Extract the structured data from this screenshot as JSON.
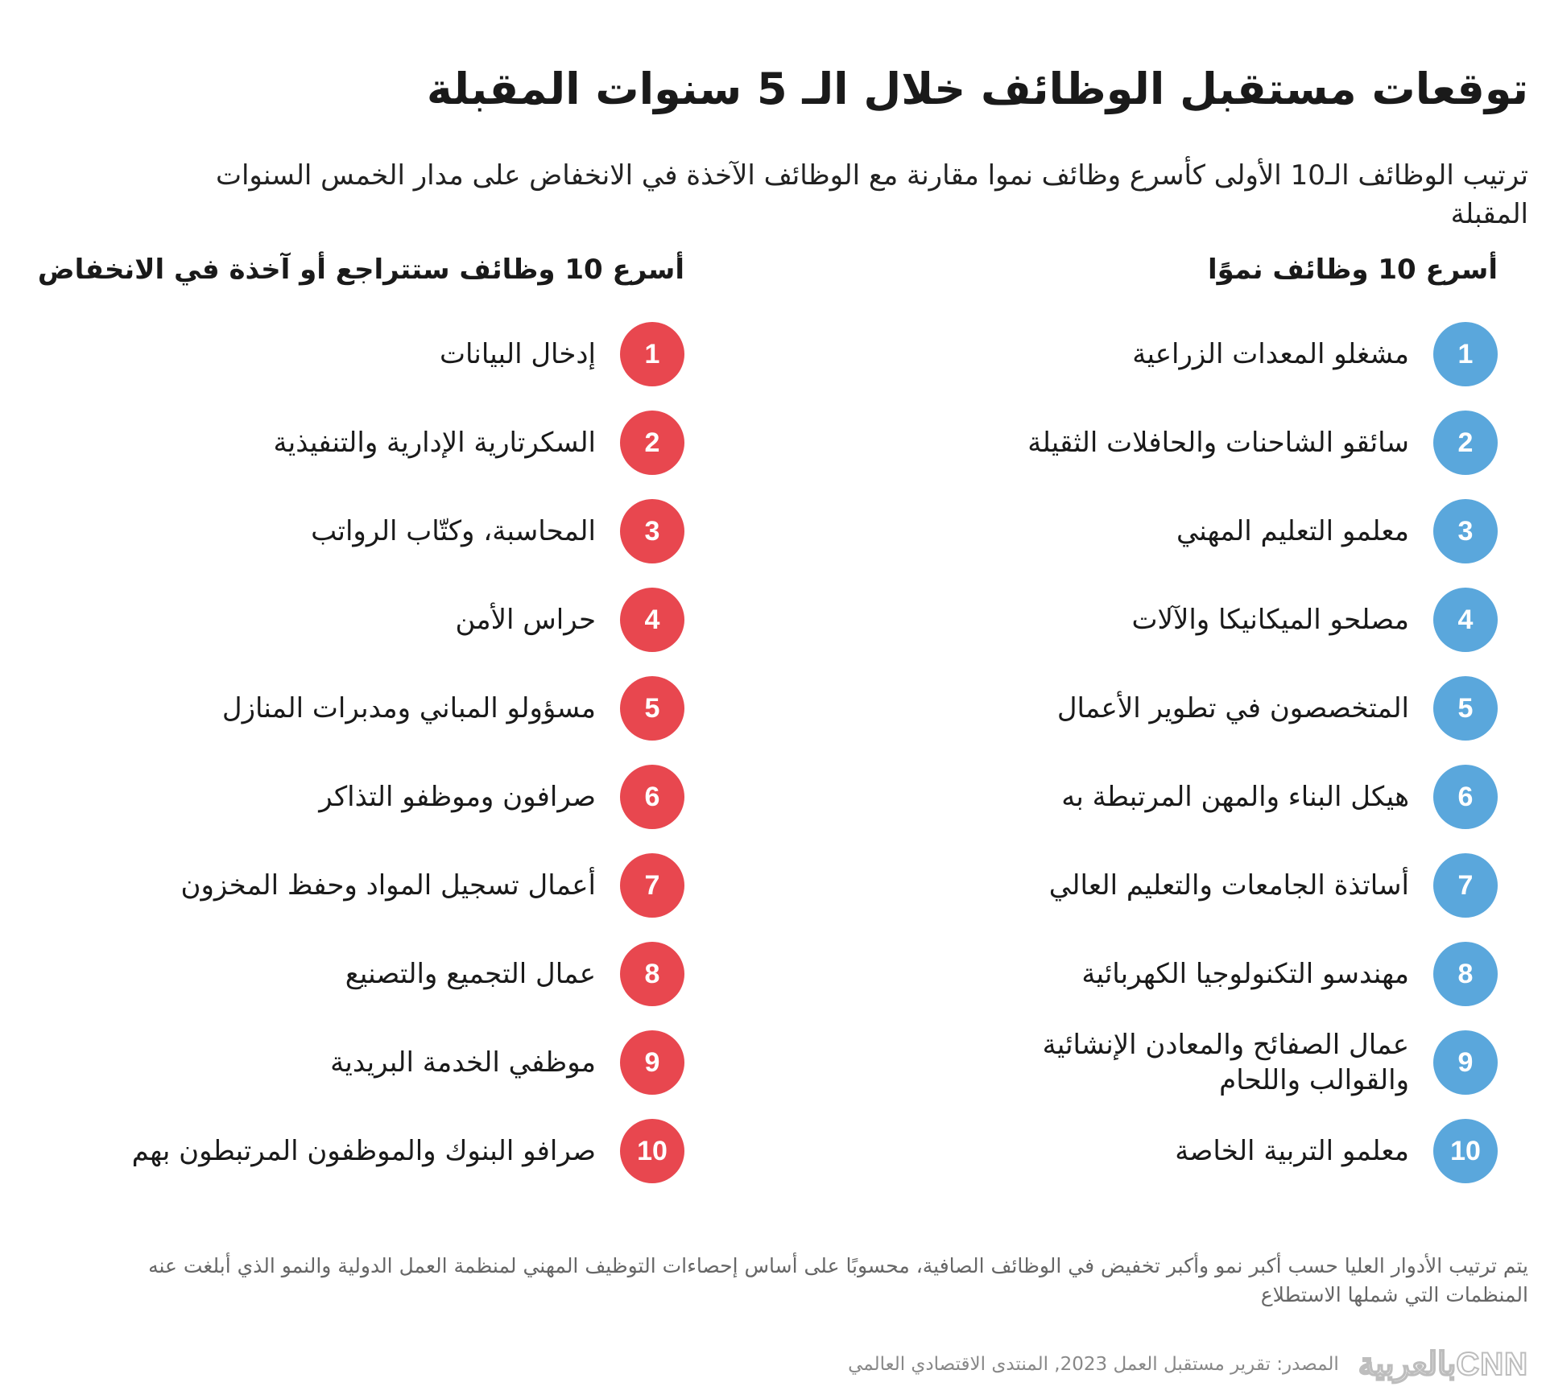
{
  "title": "توقعات مستقبل الوظائف خلال الـ 5 سنوات المقبلة",
  "subtitle": "ترتيب الوظائف الـ10 الأولى كأسرع وظائف نموا مقارنة مع الوظائف الآخذة في الانخفاض على مدار الخمس السنوات المقبلة",
  "growth": {
    "heading": "أسرع 10 وظائف نموًا",
    "items": [
      {
        "num": "1",
        "label": "مشغلو المعدات الزراعية"
      },
      {
        "num": "2",
        "label": "سائقو الشاحنات والحافلات الثقيلة"
      },
      {
        "num": "3",
        "label": "معلمو التعليم المهني"
      },
      {
        "num": "4",
        "label": "مصلحو الميكانيكا والآلات"
      },
      {
        "num": "5",
        "label": "المتخصصون في تطوير الأعمال"
      },
      {
        "num": "6",
        "label": "هيكل البناء والمهن المرتبطة به"
      },
      {
        "num": "7",
        "label": "أساتذة الجامعات والتعليم العالي"
      },
      {
        "num": "8",
        "label": "مهندسو التكنولوجيا الكهربائية"
      },
      {
        "num": "9",
        "label": "عمال الصفائح والمعادن الإنشائية والقوالب واللحام"
      },
      {
        "num": "10",
        "label": "معلمو التربية الخاصة"
      }
    ]
  },
  "decline": {
    "heading": "أسرع 10 وظائف ستتراجع أو آخذة في الانخفاض",
    "items": [
      {
        "num": "1",
        "label": "إدخال البيانات"
      },
      {
        "num": "2",
        "label": "السكرتارية الإدارية والتنفيذية"
      },
      {
        "num": "3",
        "label": "المحاسبة، وكتّاب الرواتب"
      },
      {
        "num": "4",
        "label": "حراس الأمن"
      },
      {
        "num": "5",
        "label": "مسؤولو المباني ومدبرات المنازل"
      },
      {
        "num": "6",
        "label": "صرافون وموظفو التذاكر"
      },
      {
        "num": "7",
        "label": "أعمال تسجيل المواد وحفظ المخزون"
      },
      {
        "num": "8",
        "label": "عمال التجميع والتصنيع"
      },
      {
        "num": "9",
        "label": "موظفي الخدمة البريدية"
      },
      {
        "num": "10",
        "label": "صرافو البنوك والموظفون المرتبطون بهم"
      }
    ]
  },
  "note": "يتم ترتيب الأدوار العليا حسب أكبر نمو وأكبر تخفيض في الوظائف الصافية، محسوبًا على أساس إحصاءات التوظيف المهني لمنظمة العمل الدولية والنمو الذي أبلغت عنه المنظمات التي شملها الاستطلاع",
  "source": "المصدر: تقرير مستقبل العمل 2023, المنتدى الاقتصادي العالمي",
  "logo": "بالعربيةCNN",
  "colors": {
    "growth": "#5aa7dc",
    "decline": "#e8474f"
  }
}
